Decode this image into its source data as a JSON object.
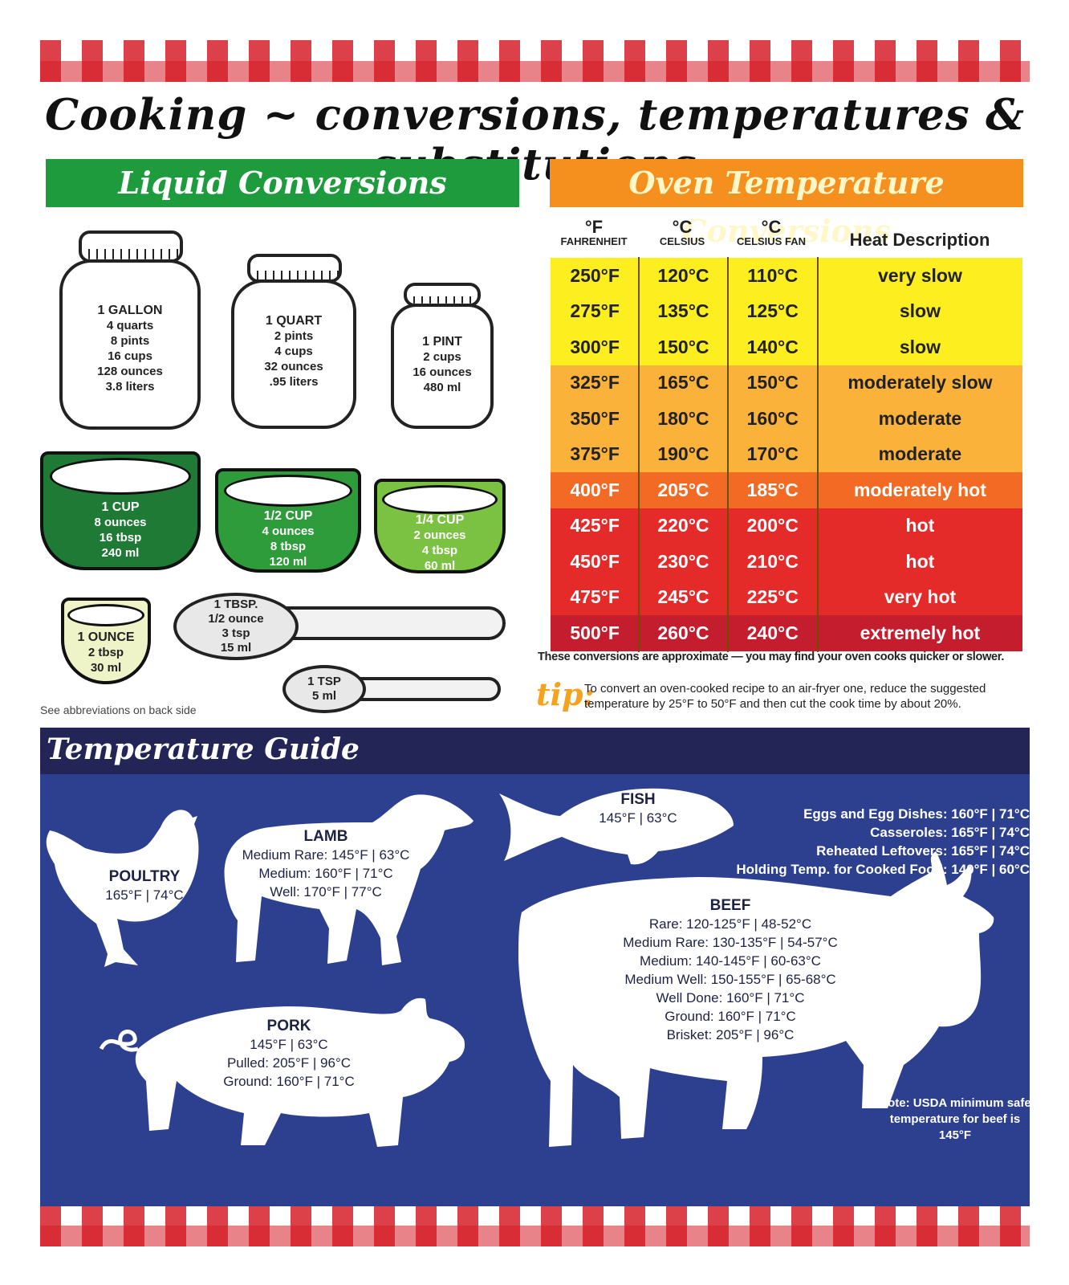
{
  "title": "Cooking ~ conversions, temperatures & substitutions",
  "liquid": {
    "heading": "Liquid Conversions",
    "gallon": [
      "1 GALLON",
      "4 quarts",
      "8 pints",
      "16 cups",
      "128 ounces",
      "3.8 liters"
    ],
    "quart": [
      "1 QUART",
      "2 pints",
      "4 cups",
      "32 ounces",
      ".95 liters"
    ],
    "pint": [
      "1 PINT",
      "2 cups",
      "16 ounces",
      "480 ml"
    ],
    "cup": [
      "1 CUP",
      "8 ounces",
      "16 tbsp",
      "240 ml"
    ],
    "half_cup": [
      "1/2 CUP",
      "4 ounces",
      "8 tbsp",
      "120 ml"
    ],
    "quarter_cup": [
      "1/4 CUP",
      "2 ounces",
      "4 tbsp",
      "60 ml"
    ],
    "ounce": [
      "1 OUNCE",
      "2 tbsp",
      "30 ml"
    ],
    "tbsp": [
      "1 TBSP.",
      "1/2 ounce",
      "3 tsp",
      "15 ml"
    ],
    "tsp": [
      "1 TSP",
      "5 ml"
    ],
    "abbrev_note": "See abbreviations on back side",
    "colors": {
      "cup": "#1f7a35",
      "half_cup": "#2f9c3b",
      "quarter_cup": "#7cc242",
      "ounce": "#eef3c8"
    }
  },
  "oven": {
    "heading": "Oven Temperature Conversions",
    "headers": [
      {
        "unit": "°F",
        "sub": "FAHRENHEIT"
      },
      {
        "unit": "°C",
        "sub": "CELSIUS"
      },
      {
        "unit": "°C",
        "sub": "CELSIUS FAN"
      },
      {
        "unit": "Heat Description",
        "sub": ""
      }
    ],
    "rows": [
      {
        "f": "250°F",
        "c": "120°C",
        "fan": "110°C",
        "desc": "very slow",
        "color": "#fdee1f"
      },
      {
        "f": "275°F",
        "c": "135°C",
        "fan": "125°C",
        "desc": "slow",
        "color": "#fdee1f"
      },
      {
        "f": "300°F",
        "c": "150°C",
        "fan": "140°C",
        "desc": "slow",
        "color": "#fdee1f"
      },
      {
        "f": "325°F",
        "c": "165°C",
        "fan": "150°C",
        "desc": "moderately slow",
        "color": "#fbb23a"
      },
      {
        "f": "350°F",
        "c": "180°C",
        "fan": "160°C",
        "desc": "moderate",
        "color": "#fbb23a"
      },
      {
        "f": "375°F",
        "c": "190°C",
        "fan": "170°C",
        "desc": "moderate",
        "color": "#fbb23a"
      },
      {
        "f": "400°F",
        "c": "205°C",
        "fan": "185°C",
        "desc": "moderately hot",
        "color": "#f26a24"
      },
      {
        "f": "425°F",
        "c": "220°C",
        "fan": "200°C",
        "desc": "hot",
        "color": "#e52b2a"
      },
      {
        "f": "450°F",
        "c": "230°C",
        "fan": "210°C",
        "desc": "hot",
        "color": "#e52b2a"
      },
      {
        "f": "475°F",
        "c": "245°C",
        "fan": "225°C",
        "desc": "very hot",
        "color": "#e52b2a"
      },
      {
        "f": "500°F",
        "c": "260°C",
        "fan": "240°C",
        "desc": "extremely hot",
        "color": "#c41e2e"
      }
    ],
    "note": "These conversions are approximate — you may find your oven cooks quicker or slower.",
    "tip_word": "tip:",
    "tip_text": "To convert an oven-cooked recipe to an air-fryer one, reduce the suggested temperature by 25°F to 50°F and then cut the cook time by about 20%."
  },
  "guide": {
    "heading": "Temperature Guide",
    "poultry": [
      "POULTRY",
      "165°F | 74°C"
    ],
    "lamb": [
      "LAMB",
      "Medium Rare: 145°F | 63°C",
      "Medium: 160°F | 71°C",
      "Well: 170°F | 77°C"
    ],
    "fish": [
      "FISH",
      "145°F | 63°C"
    ],
    "misc": [
      "Eggs and Egg Dishes: 160°F | 71°C",
      "Casseroles: 165°F | 74°C",
      "Reheated Leftovers: 165°F | 74°C",
      "Holding Temp. for Cooked Food: 140°F | 60°C"
    ],
    "beef": [
      "BEEF",
      "Rare: 120-125°F | 48-52°C",
      "Medium Rare: 130-135°F | 54-57°C",
      "Medium: 140-145°F | 60-63°C",
      "Medium Well: 150-155°F | 65-68°C",
      "Well Done: 160°F | 71°C",
      "Ground: 160°F | 71°C",
      "Brisket: 205°F | 96°C"
    ],
    "pork": [
      "PORK",
      "145°F | 63°C",
      "Pulled: 205°F | 96°C",
      "Ground: 160°F | 71°C"
    ],
    "usda_note": "Note: USDA minimum safe temperature for beef is 145°F",
    "colors": {
      "background": "#2d3f8f",
      "bar": "#222555",
      "silhouette": "#ffffff"
    }
  }
}
